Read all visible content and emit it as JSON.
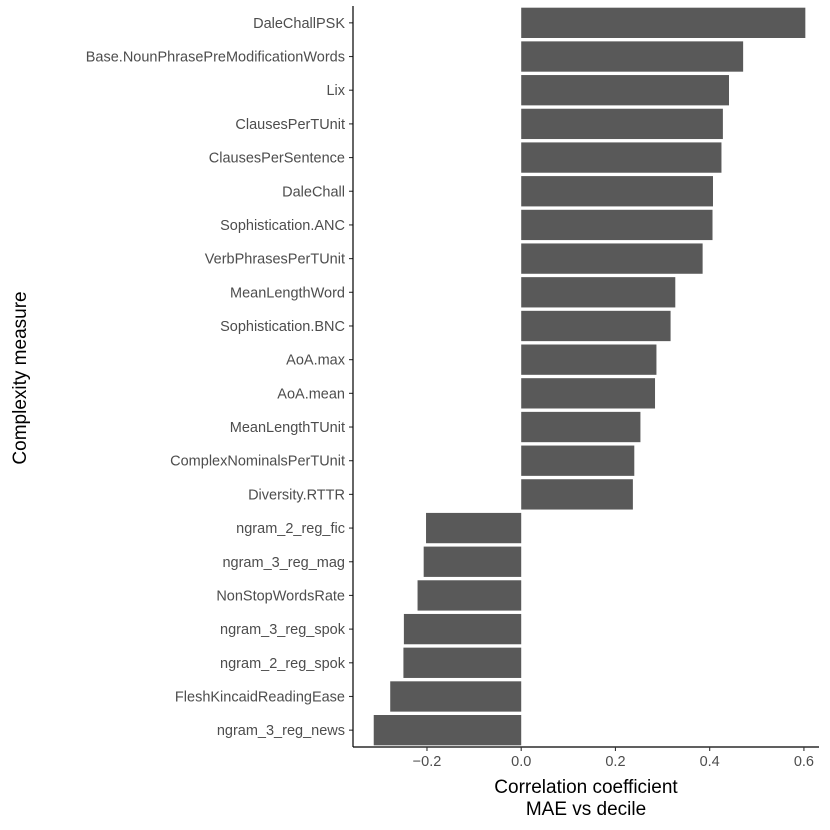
{
  "chart_data": {
    "type": "bar",
    "orientation": "horizontal",
    "xlabel": [
      "Correlation coefficient",
      "MAE vs decile"
    ],
    "ylabel": "Complexity measure",
    "xlim": [
      -0.357,
      0.632
    ],
    "x_ticks": [
      -0.2,
      0.0,
      0.2,
      0.4,
      0.6
    ],
    "x_tick_labels": [
      "−0.2",
      "0.0",
      "0.2",
      "0.4",
      "0.6"
    ],
    "grid": false,
    "bar_color": "#595959",
    "categories": [
      "DaleChallPSK",
      "Base.NounPhrasePreModificationWords",
      "Lix",
      "ClausesPerTUnit",
      "ClausesPerSentence",
      "DaleChall",
      "Sophistication.ANC",
      "VerbPhrasesPerTUnit",
      "MeanLengthWord",
      "Sophistication.BNC",
      "AoA.max",
      "AoA.mean",
      "MeanLengthTUnit",
      "ComplexNominalsPerTUnit",
      "Diversity.RTTR",
      "ngram_2_reg_fic",
      "ngram_3_reg_mag",
      "NonStopWordsRate",
      "ngram_3_reg_spok",
      "ngram_2_reg_spok",
      "FleshKincaidReadingEase",
      "ngram_3_reg_news"
    ],
    "values": [
      0.603,
      0.471,
      0.441,
      0.428,
      0.425,
      0.407,
      0.406,
      0.385,
      0.327,
      0.317,
      0.287,
      0.284,
      0.253,
      0.24,
      0.237,
      -0.202,
      -0.207,
      -0.22,
      -0.249,
      -0.25,
      -0.278,
      -0.313
    ]
  }
}
